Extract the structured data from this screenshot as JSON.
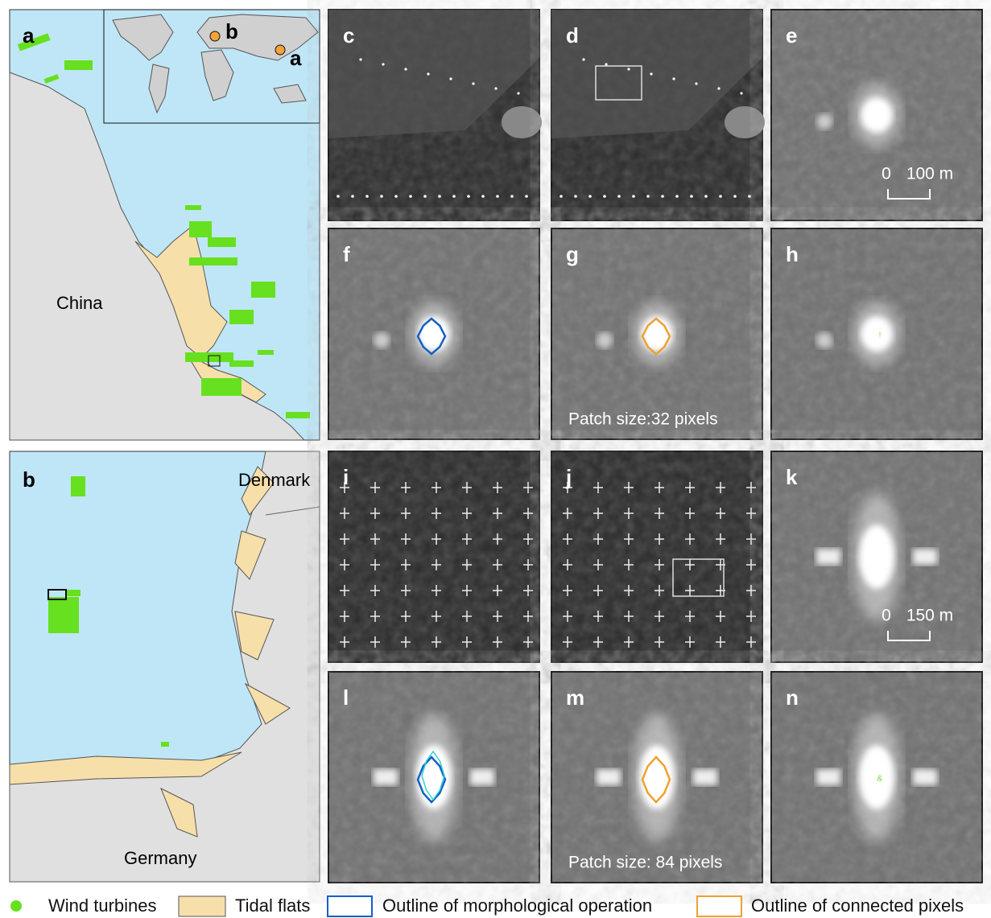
{
  "map_a": {
    "label": "a",
    "place": "China",
    "inset_markers": [
      "b",
      "a"
    ]
  },
  "map_b": {
    "label": "b",
    "places": [
      "Denmark",
      "Germany"
    ]
  },
  "images": [
    {
      "label": "c"
    },
    {
      "label": "d"
    },
    {
      "label": "e",
      "scale": [
        "0",
        "100 m"
      ]
    },
    {
      "label": "f"
    },
    {
      "label": "g",
      "caption": "Patch size:32 pixels"
    },
    {
      "label": "h",
      "marker": "!"
    },
    {
      "label": "i"
    },
    {
      "label": "j"
    },
    {
      "label": "k",
      "scale": [
        "0",
        "150 m"
      ]
    },
    {
      "label": "l"
    },
    {
      "label": "m",
      "caption": "Patch size: 84 pixels"
    },
    {
      "label": "n",
      "marker": "&"
    }
  ],
  "legend": [
    "Wind turbines",
    "Tidal flats",
    "Outline of morphological operation",
    "Outline of connected pixels"
  ]
}
